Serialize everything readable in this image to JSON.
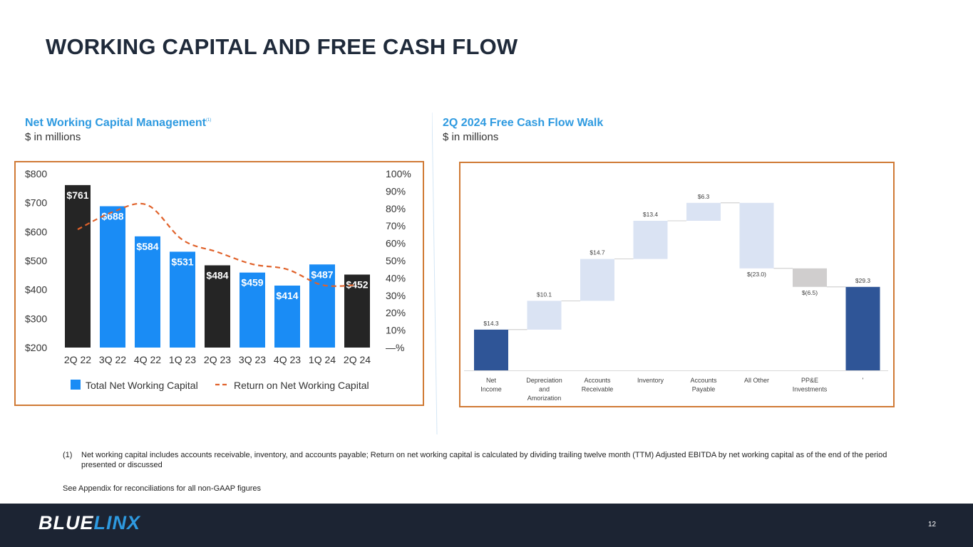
{
  "page": {
    "title": "WORKING CAPITAL AND FREE CASH FLOW",
    "page_number": "12"
  },
  "left_section": {
    "title": "Net Working Capital Management",
    "title_note": "(1)",
    "subtitle": "$ in millions"
  },
  "right_section": {
    "title": "2Q 2024 Free Cash Flow Walk",
    "subtitle": "$ in millions"
  },
  "footnote": {
    "number": "(1)",
    "text": "Net working capital includes accounts receivable, inventory, and accounts payable; Return on net working capital is calculated by dividing trailing twelve month (TTM) Adjusted EBITDA by net working capital as of the end of the period presented or discussed"
  },
  "appendix_note": "See Appendix for reconciliations for all non-GAAP figures",
  "logo": {
    "part1": "BLUE",
    "part2": "LINX"
  },
  "colors": {
    "brand_blue": "#2e9ae0",
    "bar_dark": "#252525",
    "bar_blue": "#1a8cf5",
    "line_orange": "#e0622b",
    "panel_border": "#d07a35",
    "wf_dark": "#2f5597",
    "wf_light": "#dae3f3",
    "wf_gray": "#d0cece",
    "footer_bg": "#1c2433"
  },
  "chart_data": [
    {
      "type": "bar",
      "title": "Net Working Capital Management",
      "categories": [
        "2Q 22",
        "3Q 22",
        "4Q 22",
        "1Q 23",
        "2Q 23",
        "3Q 23",
        "4Q 23",
        "1Q 24",
        "2Q 24"
      ],
      "series": [
        {
          "name": "Total Net Working Capital",
          "values": [
            761,
            688,
            584,
            531,
            484,
            459,
            414,
            487,
            452
          ],
          "labels": [
            "$761",
            "$688",
            "$584",
            "$531",
            "$484",
            "$459",
            "$414",
            "$487",
            "$452"
          ],
          "colors": [
            "dark",
            "blue",
            "blue",
            "blue",
            "dark",
            "blue",
            "blue",
            "blue",
            "dark"
          ],
          "axis": "left"
        },
        {
          "name": "Return on Net Working Capital",
          "type": "line",
          "style": "dashed",
          "values": [
            68,
            78,
            82,
            62,
            55,
            48,
            45,
            36,
            36
          ],
          "axis": "right"
        }
      ],
      "y_left": {
        "min": 200,
        "max": 800,
        "ticks": [
          "$800",
          "$700",
          "$600",
          "$500",
          "$400",
          "$300",
          "$200"
        ]
      },
      "y_right": {
        "min": 0,
        "max": 100,
        "ticks": [
          "100%",
          "90%",
          "80%",
          "70%",
          "60%",
          "50%",
          "40%",
          "30%",
          "20%",
          "10%",
          "—%"
        ]
      },
      "legend": [
        "Total Net Working Capital",
        "Return on Net Working Capital"
      ]
    },
    {
      "type": "waterfall",
      "title": "2Q 2024 Free Cash Flow Walk",
      "categories": [
        "Net Income",
        "Depreciation and Amorization",
        "Accounts Receivable",
        "Inventory",
        "Accounts Payable",
        "All Other",
        "PP&E Investments",
        "'"
      ],
      "category_lines": [
        [
          "Net",
          "Income"
        ],
        [
          "Depreciation",
          "and",
          "Amorization"
        ],
        [
          "Accounts",
          "Receivable"
        ],
        [
          "Inventory"
        ],
        [
          "Accounts",
          "Payable"
        ],
        [
          "All Other"
        ],
        [
          "PP&E",
          "Investments"
        ],
        [
          "'"
        ]
      ],
      "values": [
        14.3,
        10.1,
        14.7,
        13.4,
        6.3,
        -23.0,
        -6.5,
        29.3
      ],
      "labels": [
        "$14.3",
        "$10.1",
        "$14.7",
        "$13.4",
        "$6.3",
        "$(23.0)",
        "$(6.5)",
        "$29.3"
      ],
      "kinds": [
        "total",
        "increase",
        "increase",
        "increase",
        "increase",
        "decrease",
        "decrease",
        "total"
      ]
    }
  ]
}
